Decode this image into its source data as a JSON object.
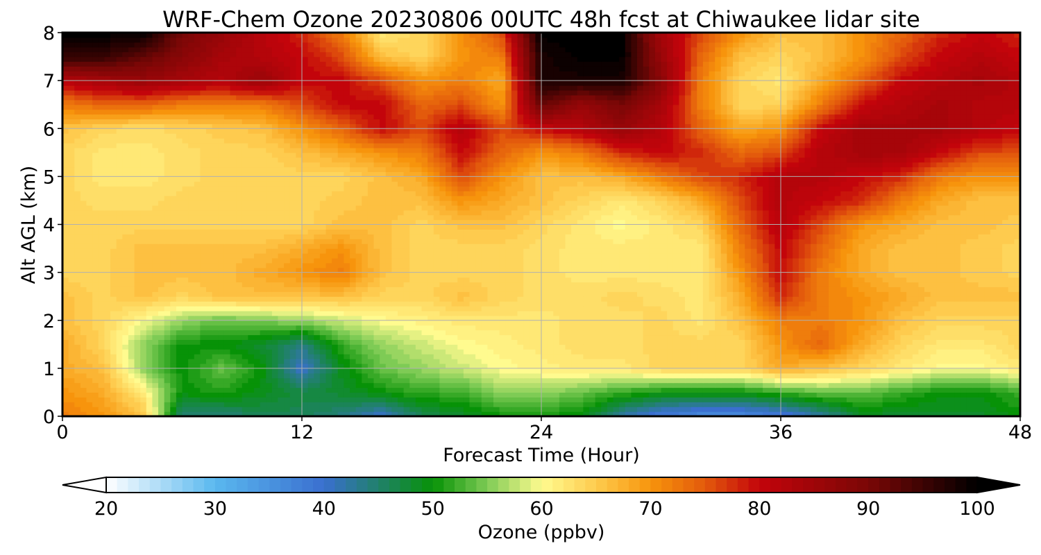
{
  "chart_data": {
    "type": "heatmap",
    "title": "WRF-Chem Ozone  20230806 00UTC 48h fcst at Chiwaukee lidar site",
    "xlabel": "Forecast Time (Hour)",
    "ylabel": "Alt AGL (km)",
    "xlim": [
      0,
      48
    ],
    "ylim": [
      0,
      8
    ],
    "xticks": [
      0,
      12,
      24,
      36,
      48
    ],
    "yticks": [
      0,
      1,
      2,
      3,
      4,
      5,
      6,
      7,
      8
    ],
    "grid": true,
    "x": [
      0,
      2,
      4,
      6,
      8,
      10,
      12,
      14,
      16,
      18,
      20,
      22,
      24,
      26,
      28,
      30,
      32,
      34,
      36,
      38,
      40,
      42,
      44,
      46,
      48
    ],
    "y": [
      0,
      0.5,
      1,
      1.5,
      2,
      2.5,
      3,
      3.5,
      4,
      4.5,
      5,
      5.5,
      6,
      6.5,
      7,
      7.5,
      8
    ],
    "z": [
      [
        72,
        70,
        66,
        44,
        44,
        46,
        46,
        44,
        40,
        46,
        48,
        50,
        50,
        50,
        42,
        38,
        36,
        36,
        38,
        42,
        48,
        48,
        48,
        48,
        50
      ],
      [
        70,
        68,
        62,
        50,
        51,
        49,
        47,
        48,
        50,
        52,
        52,
        56,
        56,
        54,
        52,
        50,
        50,
        50,
        52,
        54,
        54,
        52,
        50,
        50,
        52
      ],
      [
        68,
        66,
        56,
        50,
        54,
        50,
        40,
        49,
        54,
        56,
        58,
        60,
        61,
        62,
        62,
        64,
        64,
        64,
        68,
        66,
        64,
        62,
        60,
        60,
        62
      ],
      [
        68,
        64,
        56,
        50,
        50,
        48,
        44,
        52,
        56,
        58,
        60,
        61,
        62,
        63,
        63,
        64,
        64,
        64,
        70,
        74,
        68,
        64,
        62,
        62,
        64
      ],
      [
        66,
        64,
        60,
        56,
        54,
        55,
        56,
        58,
        60,
        61,
        62,
        62,
        62,
        63,
        63,
        64,
        62,
        66,
        72,
        72,
        70,
        66,
        64,
        64,
        64
      ],
      [
        66,
        64,
        66,
        64,
        66,
        66,
        66,
        66,
        64,
        64,
        66,
        64,
        63,
        63,
        64,
        63,
        62,
        68,
        78,
        72,
        70,
        68,
        66,
        66,
        66
      ],
      [
        64,
        64,
        66,
        66,
        66,
        68,
        70,
        72,
        66,
        64,
        64,
        64,
        63,
        62,
        62,
        62,
        62,
        70,
        80,
        72,
        68,
        66,
        66,
        65,
        64
      ],
      [
        64,
        64,
        66,
        66,
        66,
        66,
        68,
        70,
        66,
        64,
        64,
        64,
        63,
        62,
        62,
        62,
        62,
        72,
        80,
        74,
        68,
        66,
        66,
        65,
        64
      ],
      [
        64,
        64,
        64,
        64,
        64,
        64,
        64,
        66,
        66,
        64,
        66,
        66,
        64,
        62,
        60,
        62,
        64,
        74,
        82,
        76,
        70,
        68,
        66,
        66,
        65
      ],
      [
        64,
        63,
        63,
        64,
        64,
        64,
        64,
        65,
        66,
        66,
        70,
        68,
        66,
        64,
        62,
        64,
        68,
        76,
        82,
        80,
        78,
        72,
        68,
        66,
        66
      ],
      [
        64,
        62,
        62,
        63,
        64,
        64,
        64,
        64,
        66,
        68,
        76,
        70,
        66,
        66,
        68,
        72,
        76,
        78,
        82,
        82,
        80,
        78,
        72,
        70,
        70
      ],
      [
        64,
        62,
        62,
        63,
        64,
        64,
        66,
        68,
        70,
        72,
        80,
        74,
        70,
        72,
        78,
        80,
        78,
        74,
        76,
        82,
        84,
        84,
        80,
        76,
        76
      ],
      [
        66,
        64,
        63,
        64,
        65,
        66,
        70,
        74,
        80,
        76,
        82,
        76,
        80,
        82,
        86,
        82,
        74,
        68,
        70,
        80,
        84,
        84,
        84,
        82,
        80
      ],
      [
        72,
        74,
        74,
        72,
        72,
        72,
        76,
        80,
        80,
        74,
        76,
        70,
        92,
        86,
        90,
        84,
        72,
        64,
        64,
        72,
        80,
        82,
        84,
        82,
        82
      ],
      [
        82,
        84,
        86,
        84,
        82,
        86,
        80,
        80,
        76,
        70,
        72,
        68,
        98,
        98,
        98,
        88,
        72,
        64,
        62,
        68,
        74,
        80,
        82,
        84,
        82
      ],
      [
        96,
        96,
        92,
        88,
        84,
        82,
        80,
        76,
        66,
        64,
        70,
        72,
        98,
        100,
        100,
        86,
        74,
        66,
        64,
        66,
        70,
        76,
        80,
        82,
        80
      ],
      [
        100,
        100,
        100,
        90,
        86,
        82,
        78,
        72,
        62,
        64,
        70,
        76,
        100,
        100,
        100,
        84,
        76,
        70,
        66,
        66,
        70,
        74,
        78,
        80,
        78
      ]
    ],
    "colorbar": {
      "label": "Ozone  (ppbv)",
      "min": 20,
      "max": 100,
      "ticks": [
        20,
        30,
        40,
        50,
        60,
        70,
        80,
        90,
        100
      ],
      "extend": "both",
      "stops": [
        {
          "value": 20,
          "color": "#ffffff"
        },
        {
          "value": 30,
          "color": "#5ab8ef"
        },
        {
          "value": 40,
          "color": "#3a6fcf"
        },
        {
          "value": 50,
          "color": "#079207"
        },
        {
          "value": 55,
          "color": "#7ecb55"
        },
        {
          "value": 60,
          "color": "#fffb8f"
        },
        {
          "value": 65,
          "color": "#fecb4e"
        },
        {
          "value": 70,
          "color": "#f7940c"
        },
        {
          "value": 75,
          "color": "#e35a0c"
        },
        {
          "value": 80,
          "color": "#c3040b"
        },
        {
          "value": 90,
          "color": "#7a0706"
        },
        {
          "value": 100,
          "color": "#000000"
        }
      ]
    }
  }
}
